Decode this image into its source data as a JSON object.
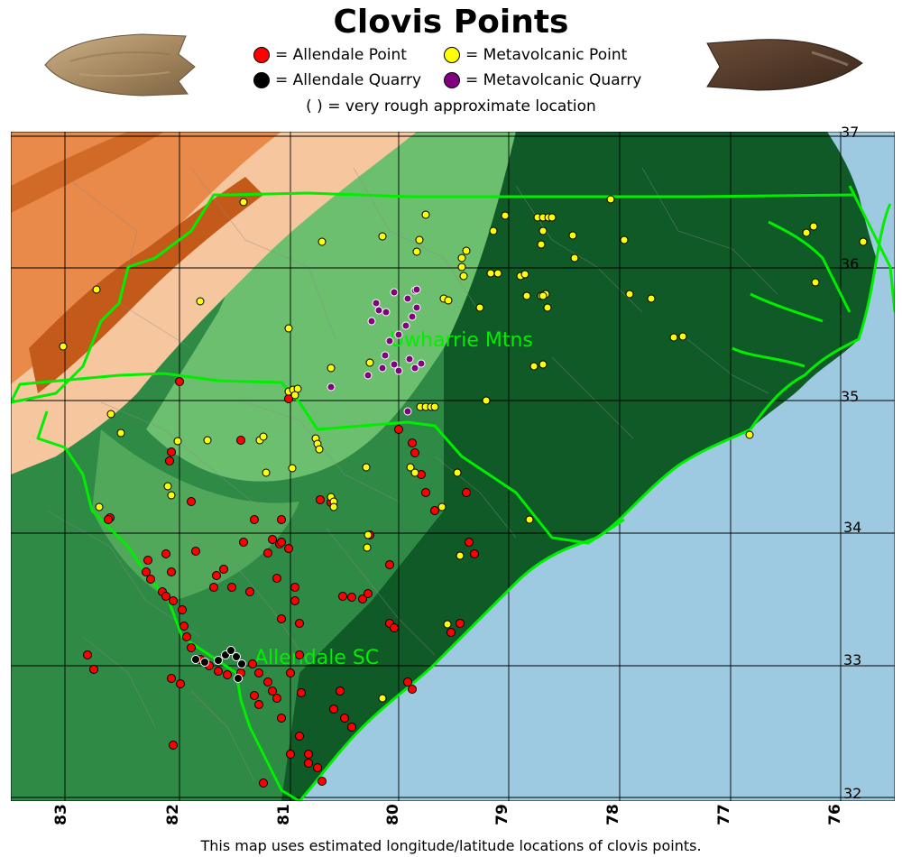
{
  "title": "Clovis Points",
  "legend": {
    "allendale_point": {
      "label": "= Allendale Point",
      "color": "#ff0000"
    },
    "allendale_quarry": {
      "label": "= Allendale Quarry",
      "color": "#000000"
    },
    "metavolcanic_point": {
      "label": "= Metavolcanic Point",
      "color": "#ffff00"
    },
    "metavolcanic_quarry": {
      "label": "= Metavolcanic Quarry",
      "color": "#800080"
    }
  },
  "note": "( ) = very rough approximate location",
  "footer": "This map uses estimated longitude/latitude locations of clovis points.",
  "map_labels": {
    "uwharrie": "Uwharrie Mtns",
    "allendale": "Allendale SC"
  },
  "lat_labels": [
    "37",
    "36",
    "35",
    "34",
    "33",
    "32"
  ],
  "lon_labels": [
    "83",
    "82",
    "81",
    "80",
    "79",
    "78",
    "77",
    "76"
  ],
  "colors": {
    "ocean": "#9ecae1",
    "border": "#00ee00",
    "grid": "#000000"
  }
}
